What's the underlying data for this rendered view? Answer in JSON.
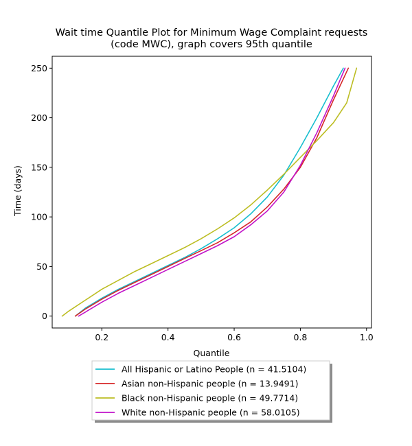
{
  "chart_data": {
    "type": "line",
    "title": [
      "Wait time Quantile Plot for Minimum Wage Complaint  requests",
      "(code MWC), graph covers 95th quantile"
    ],
    "xlabel": "Quantile",
    "ylabel": "Time (days)",
    "xlim": [
      0.05,
      1.015
    ],
    "ylim": [
      -12,
      262
    ],
    "xticks": [
      0.2,
      0.4,
      0.6,
      0.8,
      1.0
    ],
    "xtick_labels": [
      "0.2",
      "0.4",
      "0.6",
      "0.8",
      "1.0"
    ],
    "yticks": [
      0,
      50,
      100,
      150,
      200,
      250
    ],
    "ytick_labels": [
      "0",
      "50",
      "100",
      "150",
      "200",
      "250"
    ],
    "grid": false,
    "legend_position": "below-plot",
    "series": [
      {
        "name": "All Hispanic or Latino People (n = 41.5104)",
        "color": "#17becf",
        "points": [
          [
            0.12,
            0
          ],
          [
            0.15,
            8
          ],
          [
            0.2,
            18
          ],
          [
            0.25,
            27
          ],
          [
            0.3,
            35
          ],
          [
            0.35,
            43
          ],
          [
            0.4,
            51
          ],
          [
            0.45,
            59
          ],
          [
            0.5,
            68
          ],
          [
            0.55,
            78
          ],
          [
            0.6,
            89
          ],
          [
            0.65,
            103
          ],
          [
            0.7,
            120
          ],
          [
            0.75,
            142
          ],
          [
            0.8,
            170
          ],
          [
            0.85,
            200
          ],
          [
            0.9,
            232
          ],
          [
            0.93,
            250
          ]
        ]
      },
      {
        "name": "Asian non-Hispanic people (n = 13.9491)",
        "color": "#d62728",
        "points": [
          [
            0.12,
            0
          ],
          [
            0.15,
            7
          ],
          [
            0.2,
            17
          ],
          [
            0.25,
            26
          ],
          [
            0.3,
            34
          ],
          [
            0.35,
            42
          ],
          [
            0.4,
            50
          ],
          [
            0.45,
            58
          ],
          [
            0.5,
            66
          ],
          [
            0.55,
            74
          ],
          [
            0.6,
            84
          ],
          [
            0.65,
            95
          ],
          [
            0.7,
            110
          ],
          [
            0.75,
            128
          ],
          [
            0.8,
            150
          ],
          [
            0.85,
            180
          ],
          [
            0.9,
            218
          ],
          [
            0.945,
            250
          ]
        ]
      },
      {
        "name": "Black non-Hispanic people (n = 49.7714)",
        "color": "#bcbd22",
        "points": [
          [
            0.08,
            0
          ],
          [
            0.1,
            5
          ],
          [
            0.15,
            16
          ],
          [
            0.2,
            27
          ],
          [
            0.25,
            36
          ],
          [
            0.3,
            45
          ],
          [
            0.35,
            53
          ],
          [
            0.4,
            61
          ],
          [
            0.45,
            69
          ],
          [
            0.5,
            78
          ],
          [
            0.55,
            88
          ],
          [
            0.6,
            99
          ],
          [
            0.65,
            112
          ],
          [
            0.7,
            127
          ],
          [
            0.75,
            143
          ],
          [
            0.8,
            160
          ],
          [
            0.85,
            177
          ],
          [
            0.9,
            195
          ],
          [
            0.94,
            215
          ],
          [
            0.97,
            250
          ]
        ]
      },
      {
        "name": "White non-Hispanic people (n = 58.0105)",
        "color": "#c113c9",
        "points": [
          [
            0.13,
            0
          ],
          [
            0.15,
            4
          ],
          [
            0.2,
            14
          ],
          [
            0.25,
            23
          ],
          [
            0.3,
            31
          ],
          [
            0.35,
            39
          ],
          [
            0.4,
            47
          ],
          [
            0.45,
            55
          ],
          [
            0.5,
            63
          ],
          [
            0.55,
            71
          ],
          [
            0.6,
            80
          ],
          [
            0.65,
            92
          ],
          [
            0.7,
            106
          ],
          [
            0.75,
            125
          ],
          [
            0.8,
            152
          ],
          [
            0.85,
            185
          ],
          [
            0.9,
            222
          ],
          [
            0.935,
            250
          ]
        ]
      }
    ]
  }
}
